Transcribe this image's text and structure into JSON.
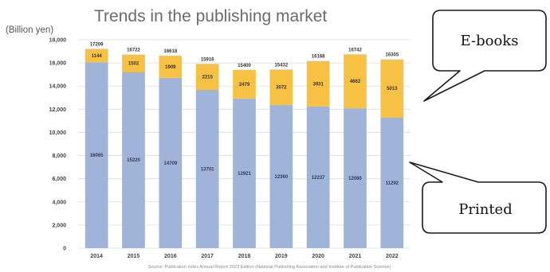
{
  "chart_data": {
    "type": "bar",
    "title": "Trends in the publishing market",
    "unit_label": "(Billion yen)",
    "categories": [
      "2014",
      "2015",
      "2016",
      "2017",
      "2018",
      "2019",
      "2020",
      "2021",
      "2022"
    ],
    "series": [
      {
        "name": "Printed",
        "color": "#9fb4d8",
        "values": [
          16065,
          15220,
          14709,
          13701,
          12921,
          12360,
          12237,
          12080,
          11292
        ]
      },
      {
        "name": "E-books",
        "color": "#f7c244",
        "values": [
          1144,
          1502,
          1909,
          2215,
          2479,
          3072,
          3931,
          4662,
          5013
        ]
      }
    ],
    "totals": [
      17209,
      16722,
      16618,
      15916,
      15400,
      15432,
      16168,
      16742,
      16305
    ],
    "ylim": [
      0,
      18000
    ],
    "yticks": [
      0,
      2000,
      4000,
      6000,
      8000,
      10000,
      12000,
      14000,
      16000,
      18000
    ],
    "ytick_labels": [
      "0",
      "2,000",
      "4,000",
      "6,000",
      "8,000",
      "10,000",
      "12,000",
      "14,000",
      "16,000",
      "18,000"
    ],
    "grid": true,
    "source": "Source: Publication Index Annual Report 2023 Edition (National Publishing Association and Institute of Publication Science)"
  },
  "callouts": {
    "ebooks_label": "E-books",
    "printed_label": "Printed"
  }
}
